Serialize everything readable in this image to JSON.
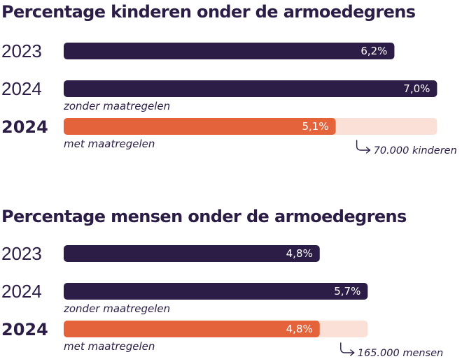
{
  "chart_data": [
    {
      "type": "bar",
      "title": "Percentage kinderen onder de armoedegrens",
      "rows": [
        {
          "label": "2023",
          "bold": false,
          "value": 6.2,
          "value_label": "6,2%",
          "sublabel": "",
          "color": "#2b1d45"
        },
        {
          "label": "2024",
          "bold": false,
          "value": 7.0,
          "value_label": "7,0%",
          "sublabel": "zonder maatregelen",
          "color": "#2b1d45"
        },
        {
          "label": "2024",
          "bold": true,
          "value": 5.1,
          "value_label": "5,1%",
          "sublabel": "met maatregelen",
          "color": "#e4633b",
          "ghost_value": 7.0,
          "ghost_color": "#fbe0d8",
          "annotation": "70.000 kinderen"
        }
      ]
    },
    {
      "type": "bar",
      "title": "Percentage mensen onder de armoedegrens",
      "rows": [
        {
          "label": "2023",
          "bold": false,
          "value": 4.8,
          "value_label": "4,8%",
          "sublabel": "",
          "color": "#2b1d45"
        },
        {
          "label": "2024",
          "bold": false,
          "value": 5.7,
          "value_label": "5,7%",
          "sublabel": "zonder maatregelen",
          "color": "#2b1d45"
        },
        {
          "label": "2024",
          "bold": true,
          "value": 4.8,
          "value_label": "4,8%",
          "sublabel": "met maatregelen",
          "color": "#e4633b",
          "ghost_value": 5.7,
          "ghost_color": "#fbe0d8",
          "annotation": "165.000 mensen"
        }
      ]
    }
  ]
}
